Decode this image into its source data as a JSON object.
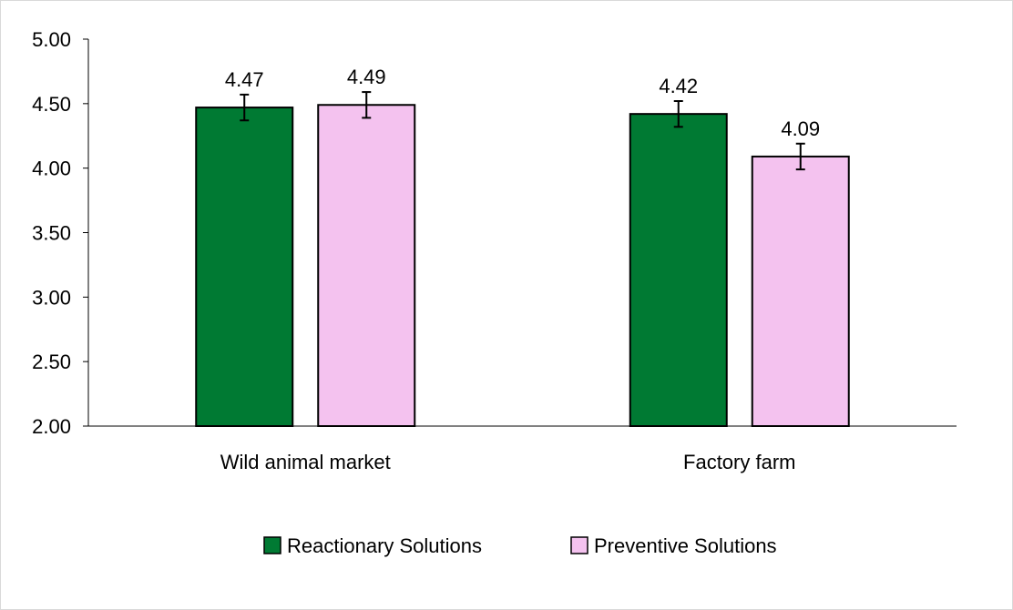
{
  "chart_data": {
    "type": "bar",
    "categories": [
      "Wild animal market",
      "Factory farm"
    ],
    "series": [
      {
        "name": "Reactionary Solutions",
        "color": "#007a33",
        "values": [
          4.47,
          4.42
        ],
        "error": [
          0.1,
          0.1
        ]
      },
      {
        "name": "Preventive Solutions",
        "color": "#f4c2ef",
        "values": [
          4.49,
          4.09
        ],
        "error": [
          0.1,
          0.1
        ]
      }
    ],
    "ylim": [
      2.0,
      5.0
    ],
    "yticks": [
      "2.00",
      "2.50",
      "3.00",
      "3.50",
      "4.00",
      "4.50",
      "5.00"
    ],
    "data_labels": [
      [
        "4.47",
        "4.42"
      ],
      [
        "4.49",
        "4.09"
      ]
    ],
    "legend_position": "bottom",
    "grid": false,
    "title": "",
    "xlabel": "",
    "ylabel": ""
  }
}
